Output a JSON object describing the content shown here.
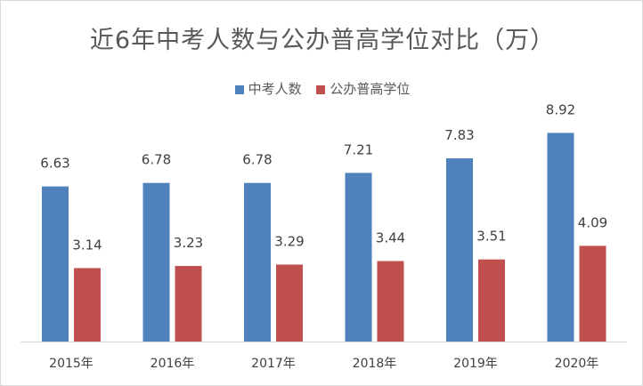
{
  "chart_data": {
    "type": "bar",
    "title": "近6年中考人数与公办普高学位对比（万）",
    "categories": [
      "2015年",
      "2016年",
      "2017年",
      "2018年",
      "2019年",
      "2020年"
    ],
    "series": [
      {
        "name": "中考人数",
        "values": [
          6.63,
          6.78,
          6.78,
          7.21,
          7.83,
          8.92
        ],
        "color": "#4f81bd"
      },
      {
        "name": "公办普高学位",
        "values": [
          3.14,
          3.23,
          3.29,
          3.44,
          3.51,
          4.09
        ],
        "color": "#c0504d"
      }
    ],
    "ylim": [
      0,
      10
    ],
    "grid": false,
    "legend": "top-center",
    "data_labels": true
  }
}
